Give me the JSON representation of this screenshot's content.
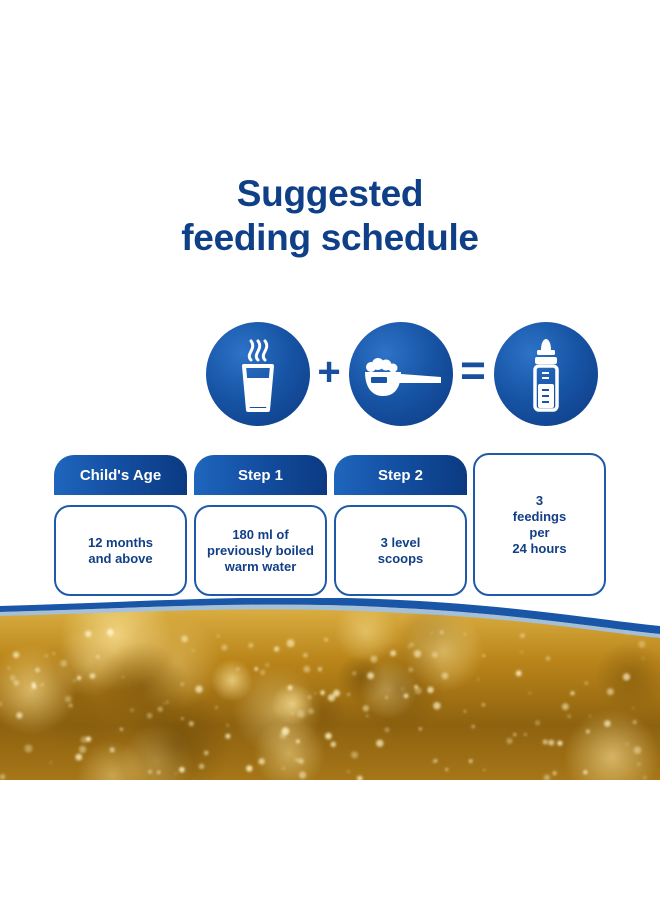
{
  "title": {
    "line1": "Suggested",
    "line2": "feeding schedule"
  },
  "icons": {
    "water": "hot-water-glass-icon",
    "scoop": "formula-scoop-icon",
    "bottle": "baby-bottle-icon"
  },
  "operators": {
    "plus": "+",
    "equals": "="
  },
  "colors": {
    "primary": "#0f3f87",
    "accent": "#1e66bd",
    "gold": "#c8901e"
  },
  "columns": [
    {
      "header": "Child's Age",
      "value": "12 months\nand above"
    },
    {
      "header": "Step 1",
      "value": "180 ml of\npreviously boiled\nwarm water"
    },
    {
      "header": "Step 2",
      "value": "3 level\nscoops"
    },
    {
      "header": "",
      "value": "3\nfeedings\nper\n24 hours"
    }
  ]
}
